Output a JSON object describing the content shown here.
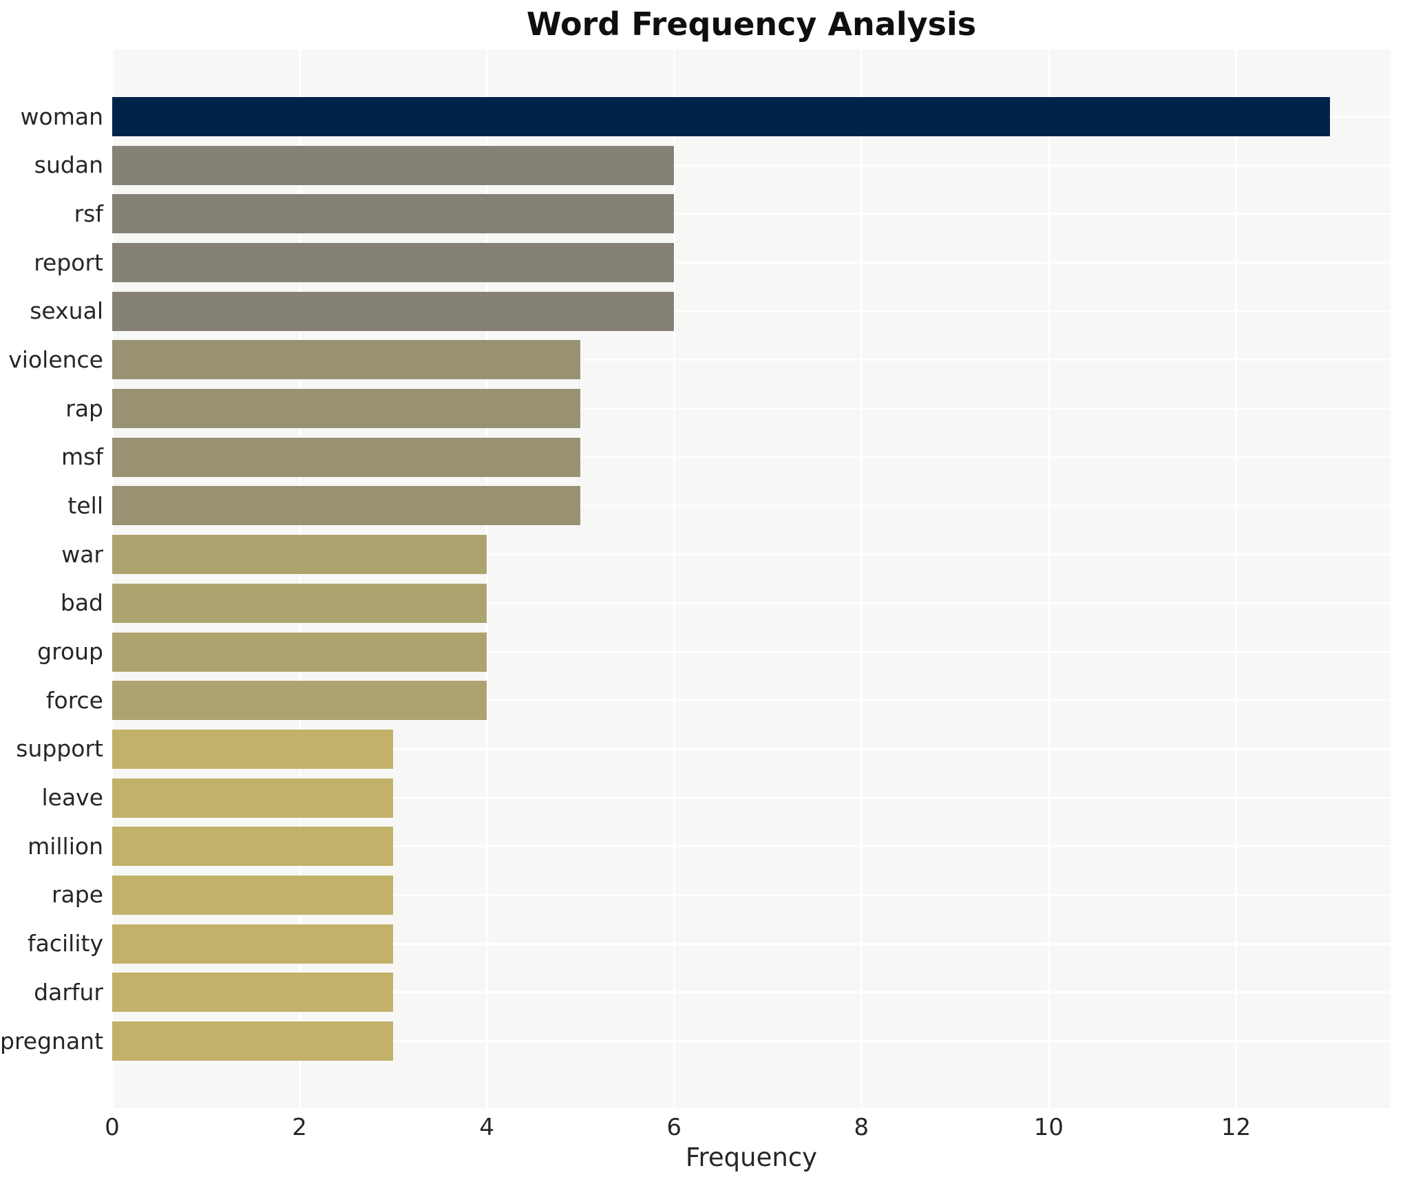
{
  "chart_data": {
    "type": "bar",
    "orientation": "horizontal",
    "title": "Word Frequency Analysis",
    "xlabel": "Frequency",
    "ylabel": "",
    "xlim": [
      0,
      13.65
    ],
    "x_ticks": [
      0,
      2,
      4,
      6,
      8,
      10,
      12
    ],
    "grid": true,
    "legend": false,
    "plot_background": "#f7f7f6",
    "grid_color": "#ffffff",
    "categories": [
      "woman",
      "sudan",
      "rsf",
      "report",
      "sexual",
      "violence",
      "rap",
      "msf",
      "tell",
      "war",
      "bad",
      "group",
      "force",
      "support",
      "leave",
      "million",
      "rape",
      "facility",
      "darfur",
      "pregnant"
    ],
    "values": [
      13,
      6,
      6,
      6,
      6,
      5,
      5,
      5,
      5,
      4,
      4,
      4,
      4,
      3,
      3,
      3,
      3,
      3,
      3,
      3
    ],
    "colors": [
      "#022349",
      "#858177",
      "#858177",
      "#858177",
      "#858177",
      "#989273",
      "#989273",
      "#989273",
      "#989273",
      "#ada36f",
      "#ada36f",
      "#ada36f",
      "#ada36f",
      "#c1b169",
      "#c1b169",
      "#c1b169",
      "#c1b169",
      "#c1b169",
      "#c1b169",
      "#c1b169"
    ]
  }
}
